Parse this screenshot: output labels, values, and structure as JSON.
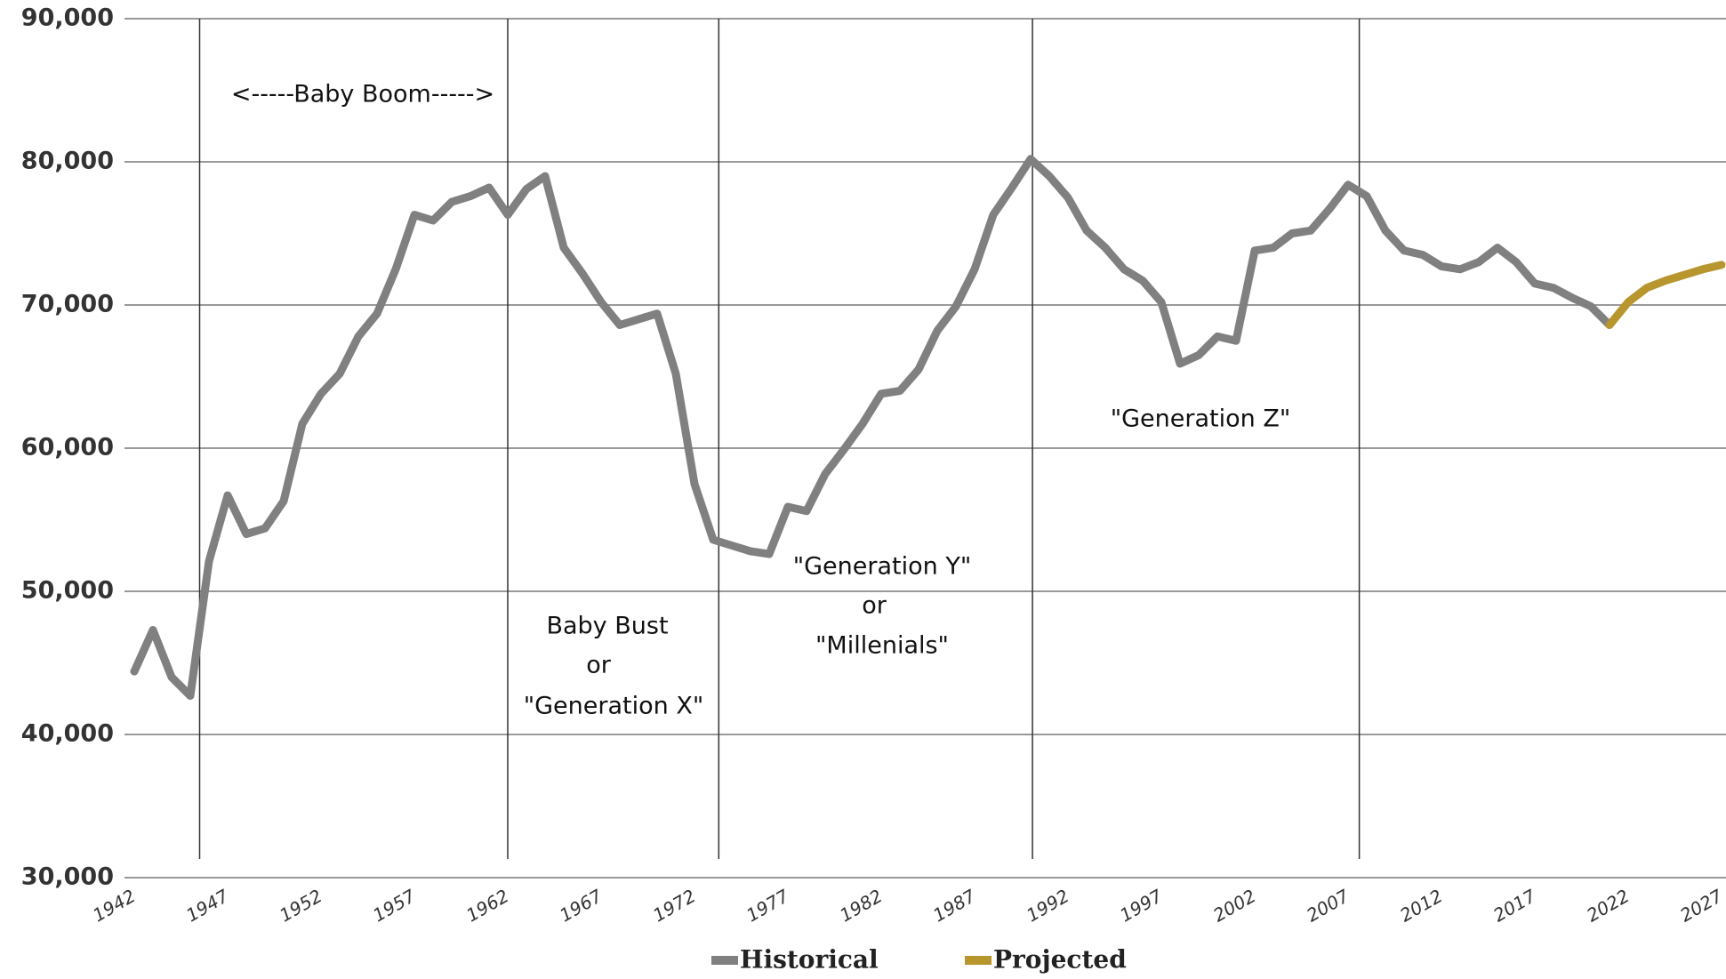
{
  "chart_data": {
    "type": "line",
    "x": [
      1942,
      1943,
      1944,
      1945,
      1946,
      1947,
      1948,
      1949,
      1950,
      1951,
      1952,
      1953,
      1954,
      1955,
      1956,
      1957,
      1958,
      1959,
      1960,
      1961,
      1962,
      1963,
      1964,
      1965,
      1966,
      1967,
      1968,
      1969,
      1970,
      1971,
      1972,
      1973,
      1974,
      1975,
      1976,
      1977,
      1978,
      1979,
      1980,
      1981,
      1982,
      1983,
      1984,
      1985,
      1986,
      1987,
      1988,
      1989,
      1990,
      1991,
      1992,
      1993,
      1994,
      1995,
      1996,
      1997,
      1998,
      1999,
      2000,
      2001,
      2002,
      2003,
      2004,
      2005,
      2006,
      2007,
      2008,
      2009,
      2010,
      2011,
      2012,
      2013,
      2014,
      2015,
      2016,
      2017,
      2018,
      2019,
      2020,
      2021,
      2022,
      2023,
      2024,
      2025,
      2026,
      2027
    ],
    "series": [
      {
        "name": "Historical",
        "color": "#808080",
        "values": [
          44400,
          47300,
          44000,
          42700,
          52100,
          56700,
          54000,
          54400,
          56300,
          61700,
          63800,
          65200,
          67800,
          69400,
          72500,
          76300,
          75900,
          77200,
          77600,
          78200,
          76300,
          78100,
          79000,
          74000,
          72200,
          70200,
          68600,
          69000,
          69400,
          65200,
          57500,
          53600,
          53200,
          52800,
          52600,
          55900,
          55600,
          58200,
          59900,
          61700,
          63800,
          64000,
          65500,
          68200,
          69900,
          72500,
          76300,
          78200,
          80200,
          79000,
          77500,
          75200,
          74000,
          72500,
          71700,
          70200,
          65900,
          66500,
          67800,
          67500,
          73800,
          74000,
          75000,
          75200,
          76700,
          78400,
          77600,
          75200,
          73800,
          73500,
          72700,
          72500,
          73000,
          74000,
          73000,
          71500,
          71200,
          70500,
          69900,
          68600,
          null,
          null,
          null,
          null,
          null,
          null
        ]
      },
      {
        "name": "Projected",
        "color": "#b8962e",
        "values": [
          null,
          null,
          null,
          null,
          null,
          null,
          null,
          null,
          null,
          null,
          null,
          null,
          null,
          null,
          null,
          null,
          null,
          null,
          null,
          null,
          null,
          null,
          null,
          null,
          null,
          null,
          null,
          null,
          null,
          null,
          null,
          null,
          null,
          null,
          null,
          null,
          null,
          null,
          null,
          null,
          null,
          null,
          null,
          null,
          null,
          null,
          null,
          null,
          null,
          null,
          null,
          null,
          null,
          null,
          null,
          null,
          null,
          null,
          null,
          null,
          null,
          null,
          null,
          null,
          null,
          null,
          null,
          null,
          null,
          null,
          null,
          null,
          null,
          null,
          null,
          null,
          null,
          null,
          null,
          68600,
          70200,
          71200,
          71700,
          72100,
          72500,
          72800
        ]
      }
    ],
    "xlim": [
      1942,
      2027
    ],
    "xticks": [
      1942,
      1947,
      1952,
      1957,
      1962,
      1967,
      1972,
      1977,
      1982,
      1987,
      1992,
      1997,
      2002,
      2007,
      2012,
      2017,
      2022,
      2027
    ],
    "ylim": [
      30000,
      90000
    ],
    "yticks": [
      {
        "value": 30000,
        "label": "30,000"
      },
      {
        "value": 40000,
        "label": "40,000"
      },
      {
        "value": 50000,
        "label": "50,000"
      },
      {
        "value": 60000,
        "label": "60,000"
      },
      {
        "value": 70000,
        "label": "70,000"
      },
      {
        "value": 80000,
        "label": "80,000"
      },
      {
        "value": 90000,
        "label": "90,000"
      }
    ],
    "grid": true,
    "legend": "bottom",
    "vlines": [
      1945.5,
      1962,
      1973.3,
      1990.1,
      2007.6
    ],
    "annotations": [
      "<-----Baby Boom----->",
      "Baby Bust",
      "or",
      "\"Generation X\"",
      "\"Generation Y\"",
      "or",
      "\"Millenials\"",
      "\"Generation Z\""
    ]
  }
}
